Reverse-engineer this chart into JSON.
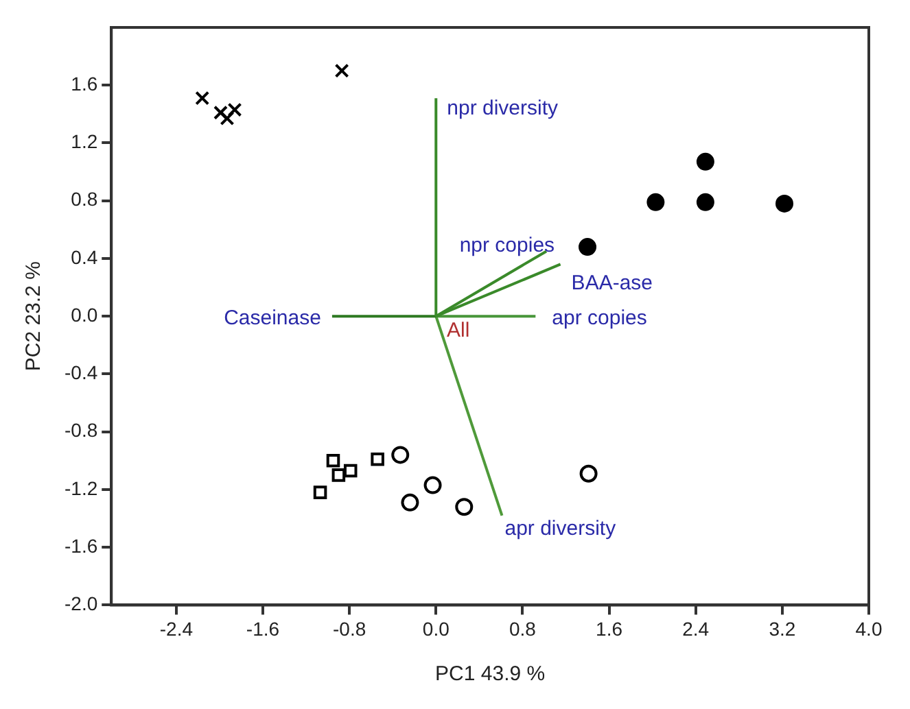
{
  "chart_data": {
    "type": "scatter",
    "xlabel": "PC1 43.9 %",
    "ylabel": "PC2 23.2 %",
    "xlim": [
      -3.0,
      4.0
    ],
    "xticks": [
      -2.4,
      -1.6,
      -0.8,
      {
        "value": 0,
        "label": "0.0"
      },
      0.8,
      1.6,
      2.4,
      3.2,
      {
        "value": 4,
        "label": "4.0"
      }
    ],
    "ylim": [
      -2.0,
      2.0
    ],
    "yticks": [
      {
        "value": -2,
        "label": "-2.0"
      },
      -1.6,
      -1.2,
      -0.8,
      -0.4,
      {
        "value": 0,
        "label": "0.0"
      },
      0.4,
      0.8,
      1.2,
      1.6
    ],
    "grid": false,
    "legend": false,
    "series": [
      {
        "color": "#000000",
        "marker": "cross",
        "x": [
          -2.16,
          -1.99,
          -1.93,
          -1.86,
          -0.87
        ],
        "values": [
          1.51,
          1.41,
          1.37,
          1.43,
          1.7
        ]
      },
      {
        "color": "#000000",
        "marker": "circle",
        "x": [
          2.49,
          2.03,
          2.49,
          3.22,
          1.4
        ],
        "values": [
          1.07,
          0.79,
          0.79,
          0.78,
          0.48
        ]
      },
      {
        "color": "#000000",
        "marker": "circle",
        "x": [
          -0.33,
          -0.03,
          -0.24,
          0.26,
          1.41
        ],
        "values": [
          -0.96,
          -1.17,
          -1.29,
          -1.32,
          -1.09
        ]
      },
      {
        "color": "#000000",
        "marker": "square",
        "x": [
          -0.95,
          -0.79,
          -0.9,
          -1.07,
          -0.54
        ],
        "values": [
          -1.0,
          -1.07,
          -1.1,
          -1.22,
          -0.99
        ]
      },
      {
        "type": "line",
        "name": "npr diversity",
        "color": "#3a8a2a",
        "x": [
          0,
          0
        ],
        "values": [
          0,
          1.51
        ]
      },
      {
        "type": "line",
        "name": "npr copies",
        "color": "#3a8a2a",
        "x": [
          0,
          1.02
        ],
        "values": [
          0,
          0.45
        ]
      },
      {
        "type": "line",
        "name": "BAA-ase",
        "color": "#3a8a2a",
        "x": [
          0,
          1.15
        ],
        "values": [
          0,
          0.36
        ]
      },
      {
        "type": "line",
        "name": "apr copies",
        "color": "#48963a",
        "x": [
          0,
          0.92
        ],
        "values": [
          0,
          0
        ]
      },
      {
        "type": "line",
        "name": "Caseinase",
        "color": "#2e7a22",
        "x": [
          0,
          -0.96
        ],
        "values": [
          0,
          0
        ]
      },
      {
        "type": "line",
        "name": "apr diversity",
        "color": "#4f9a3a",
        "x": [
          0,
          0.61
        ],
        "values": [
          0,
          -1.38
        ]
      }
    ],
    "annotations": [
      {
        "text": "All",
        "x": 0.1,
        "y": -0.1
      }
    ]
  }
}
